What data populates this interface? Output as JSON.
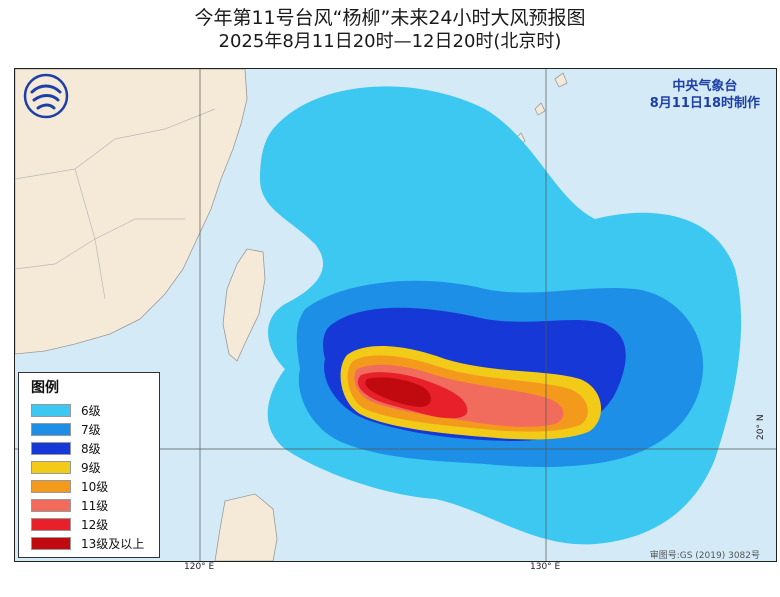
{
  "title_line1": "今年第11号台风“杨柳”未来24小时大风预报图",
  "title_line2": "2025年8月11日20时—12日20时(北京时)",
  "issuer": {
    "org": "中央气象台",
    "time": "8月11日18时制作"
  },
  "legend": {
    "title": "图例",
    "items": [
      {
        "label": "6级",
        "color": "#3cc8f0"
      },
      {
        "label": "7级",
        "color": "#1e8fe6"
      },
      {
        "label": "8级",
        "color": "#1638d6"
      },
      {
        "label": "9级",
        "color": "#f2cb18"
      },
      {
        "label": "10级",
        "color": "#f39a1c"
      },
      {
        "label": "11级",
        "color": "#f26c5e"
      },
      {
        "label": "12级",
        "color": "#e8202a"
      },
      {
        "label": "13级及以上",
        "color": "#c00a10"
      }
    ]
  },
  "axes": {
    "lon_120": "120° E",
    "lon_130": "130° E",
    "lat_20": "20° N"
  },
  "approval": "审图号:GS (2019) 3082号",
  "colors": {
    "sea": "#d4ebf7",
    "land": "#f5ead8",
    "grid": "#555555"
  }
}
